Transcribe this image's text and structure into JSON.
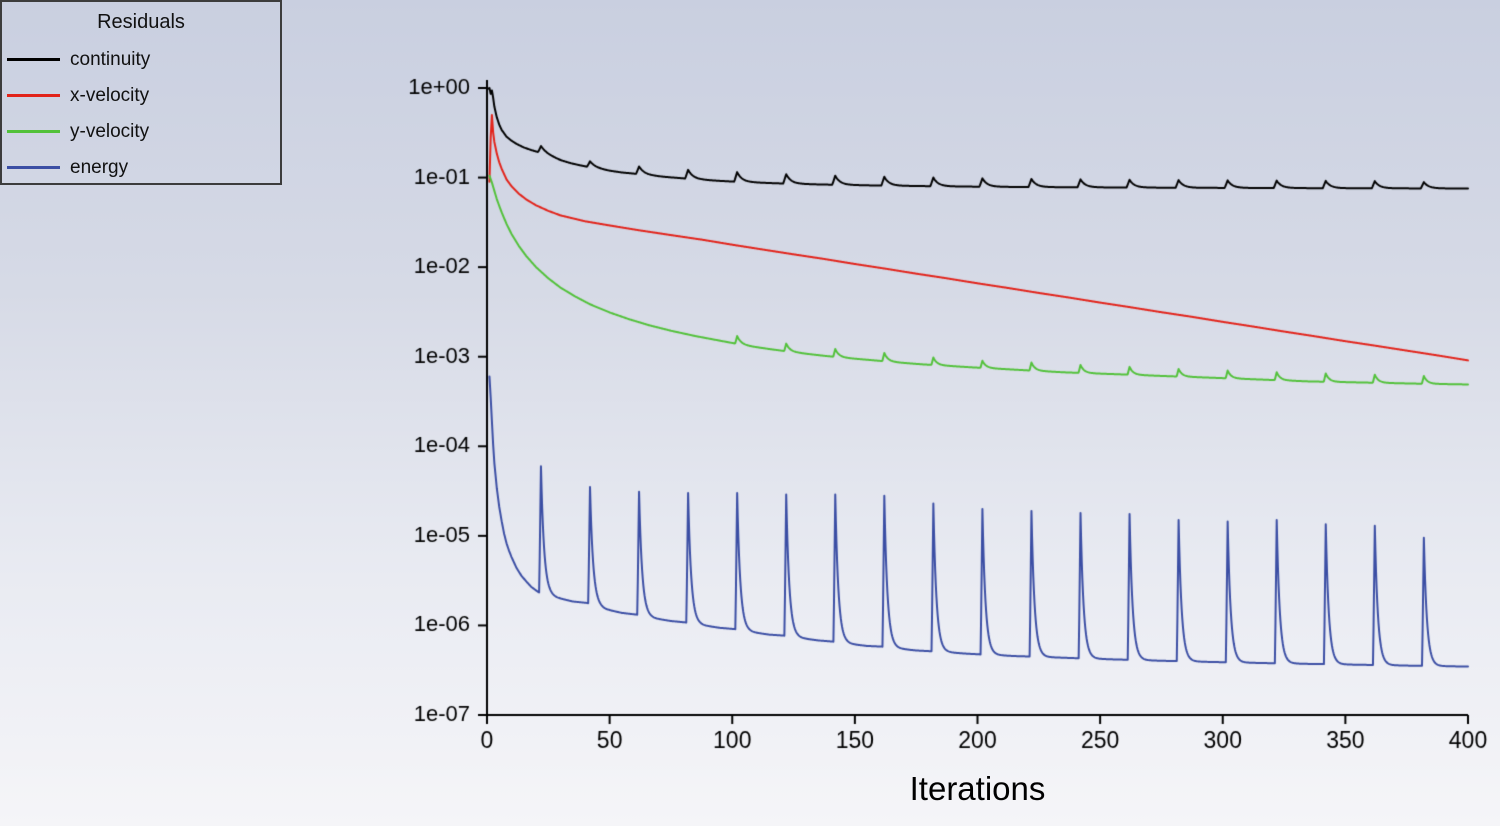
{
  "legend": {
    "title": "Residuals"
  },
  "colors": {
    "background_top": "#c9cfe0",
    "background_bottom": "#f5f5f8",
    "axis": "#000000",
    "tick_text": "#000000"
  },
  "chart_data": {
    "type": "line",
    "title": "",
    "xlabel": "Iterations",
    "ylabel": "",
    "grid": false,
    "legend_position": "top-left",
    "x_axis": {
      "min": 0,
      "max": 400,
      "ticks": [
        0,
        50,
        100,
        150,
        200,
        250,
        300,
        350,
        400
      ]
    },
    "y_axis": {
      "scale": "log",
      "min": 1e-07,
      "max": 1,
      "tick_labels": [
        "1e+00",
        "1e-01",
        "1e-02",
        "1e-03",
        "1e-04",
        "1e-05",
        "1e-06",
        "1e-07"
      ]
    },
    "series": [
      {
        "name": "continuity",
        "color": "#000000",
        "spike_rise": 1.2,
        "spike_decay": 0.6,
        "baseline": [
          [
            0,
            0.97
          ],
          [
            1,
            1.0
          ],
          [
            1.5,
            0.86
          ],
          [
            2,
            0.94
          ],
          [
            2.5,
            0.78
          ],
          [
            3,
            0.62
          ],
          [
            4,
            0.47
          ],
          [
            5,
            0.39
          ],
          [
            6,
            0.34
          ],
          [
            8,
            0.285
          ],
          [
            10,
            0.258
          ],
          [
            12,
            0.238
          ],
          [
            15,
            0.217
          ],
          [
            18,
            0.203
          ],
          [
            21,
            0.192
          ],
          [
            24,
            0.18
          ],
          [
            27,
            0.168
          ],
          [
            30,
            0.156
          ],
          [
            34,
            0.145
          ],
          [
            38,
            0.137
          ],
          [
            41,
            0.132
          ],
          [
            45,
            0.126
          ],
          [
            50,
            0.119
          ],
          [
            55,
            0.114
          ],
          [
            61,
            0.11
          ],
          [
            66,
            0.106
          ],
          [
            72,
            0.102
          ],
          [
            77,
            0.0995
          ],
          [
            81,
            0.0975
          ],
          [
            86,
            0.0952
          ],
          [
            91,
            0.0932
          ],
          [
            96,
            0.0915
          ],
          [
            101,
            0.09
          ],
          [
            106,
            0.0888
          ],
          [
            111,
            0.0877
          ],
          [
            116,
            0.0867
          ],
          [
            121,
            0.0858
          ],
          [
            127,
            0.0849
          ],
          [
            133,
            0.0841
          ],
          [
            141,
            0.0832
          ],
          [
            148,
            0.0825
          ],
          [
            155,
            0.0819
          ],
          [
            161,
            0.0814
          ],
          [
            168,
            0.0809
          ],
          [
            175,
            0.0805
          ],
          [
            181,
            0.0801
          ],
          [
            190,
            0.0796
          ],
          [
            201,
            0.0791
          ],
          [
            211,
            0.0787
          ],
          [
            221,
            0.0784
          ],
          [
            231,
            0.0781
          ],
          [
            241,
            0.0778
          ],
          [
            251,
            0.0776
          ],
          [
            261,
            0.0774
          ],
          [
            271,
            0.0772
          ],
          [
            281,
            0.077
          ],
          [
            291,
            0.0768
          ],
          [
            301,
            0.0767
          ],
          [
            311,
            0.0765
          ],
          [
            321,
            0.0764
          ],
          [
            331,
            0.0763
          ],
          [
            341,
            0.0761
          ],
          [
            351,
            0.076
          ],
          [
            361,
            0.0759
          ],
          [
            371,
            0.0758
          ],
          [
            381,
            0.0757
          ],
          [
            391,
            0.0756
          ],
          [
            400,
            0.0755
          ]
        ],
        "spikes": [
          [
            22,
            0.225
          ],
          [
            42,
            0.152
          ],
          [
            62,
            0.133
          ],
          [
            82,
            0.122
          ],
          [
            102,
            0.115
          ],
          [
            122,
            0.109
          ],
          [
            142,
            0.105
          ],
          [
            162,
            0.102
          ],
          [
            182,
            0.1
          ],
          [
            202,
            0.098
          ],
          [
            222,
            0.0965
          ],
          [
            242,
            0.0955
          ],
          [
            262,
            0.0945
          ],
          [
            282,
            0.0938
          ],
          [
            302,
            0.093
          ],
          [
            322,
            0.0924
          ],
          [
            342,
            0.0918
          ],
          [
            362,
            0.0912
          ],
          [
            382,
            0.089
          ]
        ]
      },
      {
        "name": "x-velocity",
        "color": "#e2231a",
        "spike_rise": 0.8,
        "spike_decay": 0.5,
        "baseline": [
          [
            1,
            0.09
          ],
          [
            1.5,
            0.28
          ],
          [
            2,
            0.5
          ],
          [
            2.5,
            0.32
          ],
          [
            3,
            0.25
          ],
          [
            4,
            0.185
          ],
          [
            5,
            0.148
          ],
          [
            6,
            0.125
          ],
          [
            8,
            0.095
          ],
          [
            10,
            0.08
          ],
          [
            13,
            0.066
          ],
          [
            16,
            0.057
          ],
          [
            20,
            0.049
          ],
          [
            25,
            0.0425
          ],
          [
            30,
            0.0378
          ],
          [
            40,
            0.0325
          ],
          [
            50,
            0.0292
          ],
          [
            62,
            0.0258
          ],
          [
            75,
            0.0228
          ],
          [
            88,
            0.0202
          ],
          [
            100,
            0.0178
          ],
          [
            112,
            0.0158
          ],
          [
            125,
            0.0139
          ],
          [
            137,
            0.0124
          ],
          [
            150,
            0.01084
          ],
          [
            162,
            0.00966
          ],
          [
            175,
            0.00846
          ],
          [
            187,
            0.00754
          ],
          [
            200,
            0.0066
          ],
          [
            212,
            0.00588
          ],
          [
            225,
            0.00515
          ],
          [
            237,
            0.00459
          ],
          [
            250,
            0.00402
          ],
          [
            262,
            0.00358
          ],
          [
            275,
            0.00314
          ],
          [
            287,
            0.0028
          ],
          [
            300,
            0.00245
          ],
          [
            312,
            0.00218
          ],
          [
            325,
            0.00191
          ],
          [
            337,
            0.0017
          ],
          [
            350,
            0.00149
          ],
          [
            362,
            0.00133
          ],
          [
            375,
            0.00117
          ],
          [
            387,
            0.00104
          ],
          [
            400,
            0.00091
          ]
        ],
        "spikes": []
      },
      {
        "name": "y-velocity",
        "color": "#52c13a",
        "spike_rise": 0.8,
        "spike_decay": 0.5,
        "baseline": [
          [
            1,
            0.105
          ],
          [
            2,
            0.088
          ],
          [
            3,
            0.071
          ],
          [
            4,
            0.0575
          ],
          [
            5,
            0.0482
          ],
          [
            6,
            0.0408
          ],
          [
            8,
            0.0302
          ],
          [
            10,
            0.0235
          ],
          [
            13,
            0.0172
          ],
          [
            16,
            0.0133
          ],
          [
            20,
            0.01
          ],
          [
            25,
            0.0075
          ],
          [
            30,
            0.0059
          ],
          [
            36,
            0.0047
          ],
          [
            42,
            0.00385
          ],
          [
            50,
            0.00312
          ],
          [
            58,
            0.00262
          ],
          [
            66,
            0.00225
          ],
          [
            75,
            0.00195
          ],
          [
            85,
            0.0017
          ],
          [
            95,
            0.00151
          ],
          [
            102,
            0.00139
          ],
          [
            108,
            0.0013
          ],
          [
            115,
            0.00122
          ],
          [
            122,
            0.00115
          ],
          [
            130,
            0.00108
          ],
          [
            138,
            0.00102
          ],
          [
            148,
            0.00096
          ],
          [
            158,
            0.00091
          ],
          [
            168,
            0.00086
          ],
          [
            178,
            0.00082
          ],
          [
            188,
            0.00079
          ],
          [
            198,
            0.00076
          ],
          [
            210,
            0.00073
          ],
          [
            222,
            0.0007
          ],
          [
            235,
            0.00067
          ],
          [
            248,
            0.00065
          ],
          [
            262,
            0.00063
          ],
          [
            275,
            0.00061
          ],
          [
            290,
            0.00059
          ],
          [
            305,
            0.00057
          ],
          [
            320,
            0.00055
          ],
          [
            335,
            0.00053
          ],
          [
            350,
            0.00052
          ],
          [
            365,
            0.00051
          ],
          [
            380,
            0.0005
          ],
          [
            400,
            0.00049
          ]
        ],
        "spikes": [
          [
            102,
            0.0017
          ],
          [
            122,
            0.0014
          ],
          [
            142,
            0.00122
          ],
          [
            162,
            0.0011
          ],
          [
            182,
            0.00098
          ],
          [
            202,
            0.0009
          ],
          [
            222,
            0.00086
          ],
          [
            242,
            0.00081
          ],
          [
            262,
            0.00077
          ],
          [
            282,
            0.00073
          ],
          [
            302,
            0.0007
          ],
          [
            322,
            0.00067
          ],
          [
            342,
            0.00065
          ],
          [
            362,
            0.00063
          ],
          [
            382,
            0.00061
          ]
        ]
      },
      {
        "name": "energy",
        "color": "#3b4ea4",
        "spike_rise": 0.7,
        "spike_decay": 0.45,
        "baseline": [
          [
            1,
            0.0006
          ],
          [
            1.5,
            0.00035
          ],
          [
            2,
            0.00019
          ],
          [
            2.5,
            0.000105
          ],
          [
            3,
            6.5e-05
          ],
          [
            4,
            3.4e-05
          ],
          [
            5,
            2.1e-05
          ],
          [
            6,
            1.45e-05
          ],
          [
            7,
            1.05e-05
          ],
          [
            8,
            8.2e-06
          ],
          [
            9,
            6.8e-06
          ],
          [
            10,
            5.8e-06
          ],
          [
            12,
            4.4e-06
          ],
          [
            14,
            3.6e-06
          ],
          [
            16,
            3.1e-06
          ],
          [
            18,
            2.7e-06
          ],
          [
            21,
            2.35e-06
          ],
          [
            28,
            2.05e-06
          ],
          [
            35,
            1.85e-06
          ],
          [
            41,
            1.78e-06
          ],
          [
            48,
            1.52e-06
          ],
          [
            55,
            1.38e-06
          ],
          [
            61,
            1.32e-06
          ],
          [
            68,
            1.2e-06
          ],
          [
            75,
            1.12e-06
          ],
          [
            81,
            1.08e-06
          ],
          [
            88,
            1e-06
          ],
          [
            95,
            9.4e-07
          ],
          [
            101,
            9.1e-07
          ],
          [
            108,
            8.4e-07
          ],
          [
            115,
            7.9e-07
          ],
          [
            121,
            7.7e-07
          ],
          [
            128,
            7.2e-07
          ],
          [
            135,
            6.8e-07
          ],
          [
            141,
            6.6e-07
          ],
          [
            148,
            6.2e-07
          ],
          [
            155,
            5.9e-07
          ],
          [
            161,
            5.8e-07
          ],
          [
            168,
            5.5e-07
          ],
          [
            175,
            5.25e-07
          ],
          [
            181,
            5.15e-07
          ],
          [
            188,
            5e-07
          ],
          [
            195,
            4.85e-07
          ],
          [
            201,
            4.75e-07
          ],
          [
            208,
            4.65e-07
          ],
          [
            215,
            4.55e-07
          ],
          [
            221,
            4.5e-07
          ],
          [
            228,
            4.42e-07
          ],
          [
            235,
            4.36e-07
          ],
          [
            241,
            4.3e-07
          ],
          [
            248,
            4.24e-07
          ],
          [
            255,
            4.18e-07
          ],
          [
            261,
            4.14e-07
          ],
          [
            268,
            4.08e-07
          ],
          [
            275,
            4.03e-07
          ],
          [
            281,
            4e-07
          ],
          [
            288,
            3.95e-07
          ],
          [
            295,
            3.91e-07
          ],
          [
            301,
            3.88e-07
          ],
          [
            308,
            3.84e-07
          ],
          [
            315,
            3.81e-07
          ],
          [
            321,
            3.78e-07
          ],
          [
            328,
            3.75e-07
          ],
          [
            335,
            3.72e-07
          ],
          [
            341,
            3.7e-07
          ],
          [
            348,
            3.67e-07
          ],
          [
            355,
            3.64e-07
          ],
          [
            361,
            3.62e-07
          ],
          [
            368,
            3.59e-07
          ],
          [
            375,
            3.56e-07
          ],
          [
            381,
            3.54e-07
          ],
          [
            388,
            3.51e-07
          ],
          [
            395,
            3.49e-07
          ],
          [
            400,
            3.47e-07
          ]
        ],
        "spikes": [
          [
            22,
            6e-05
          ],
          [
            42,
            3.5e-05
          ],
          [
            62,
            3.1e-05
          ],
          [
            82,
            3e-05
          ],
          [
            102,
            3e-05
          ],
          [
            122,
            2.9e-05
          ],
          [
            142,
            2.9e-05
          ],
          [
            162,
            2.8e-05
          ],
          [
            182,
            2.3e-05
          ],
          [
            202,
            2e-05
          ],
          [
            222,
            1.9e-05
          ],
          [
            242,
            1.8e-05
          ],
          [
            262,
            1.75e-05
          ],
          [
            282,
            1.5e-05
          ],
          [
            302,
            1.45e-05
          ],
          [
            322,
            1.5e-05
          ],
          [
            342,
            1.35e-05
          ],
          [
            362,
            1.3e-05
          ],
          [
            382,
            9.5e-06
          ]
        ]
      }
    ]
  }
}
